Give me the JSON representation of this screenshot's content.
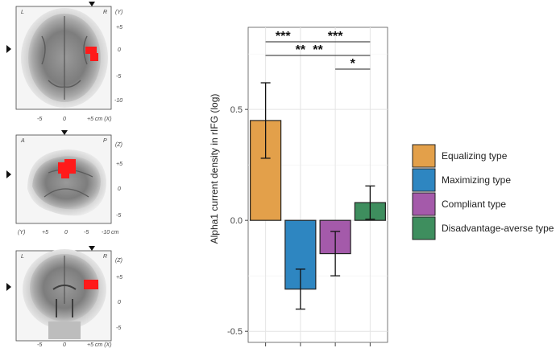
{
  "colors": {
    "equalizing": "#E3A04A",
    "maximizing": "#2E86C1",
    "compliant": "#A45AAA",
    "disadvantage": "#3E8E5E",
    "activation": "#FF1A1A"
  },
  "brain_panels": {
    "axial": {
      "orient_left": "L",
      "orient_right": "R",
      "y_label": "(Y)",
      "x_label": "+5 cm (X)",
      "x_ticks": [
        "-5",
        "0"
      ],
      "side_ticks": [
        "+5",
        "0",
        "-5",
        "-10"
      ]
    },
    "sagittal": {
      "orient_left": "A",
      "orient_right": "P",
      "y_label": "(Z)",
      "x_label": "(Y)",
      "x_ticks": [
        "+5",
        "0",
        "-5",
        "-10 cm"
      ],
      "side_ticks": [
        "+5",
        "0",
        "-5"
      ]
    },
    "coronal": {
      "orient_left": "L",
      "orient_right": "R",
      "y_label": "(Z)",
      "x_label": "+5 cm (X)",
      "x_ticks": [
        "-5",
        "0"
      ],
      "side_ticks": [
        "+5",
        "0",
        "-5"
      ]
    }
  },
  "chart_data": {
    "type": "bar",
    "categories": [
      "Equalizing type",
      "Maximizing type",
      "Compliant type",
      "Disadvantage-averse type"
    ],
    "values": [
      0.45,
      -0.31,
      -0.15,
      0.08
    ],
    "errors": [
      0.17,
      0.09,
      0.1,
      0.075
    ],
    "ylabel": "Alpha1 current density in rIFG (log)",
    "ylim": [
      -0.55,
      0.87
    ],
    "yticks": [
      -0.5,
      0.0,
      0.5
    ],
    "ytick_labels": [
      "-0.5",
      "0.0",
      "0.5"
    ],
    "grid": true,
    "legend_position": "right",
    "significance": [
      {
        "from": 0,
        "to": 1,
        "label": "***"
      },
      {
        "from": 1,
        "to": 3,
        "label": "***"
      },
      {
        "from": 0,
        "to": 2,
        "label": "**"
      },
      {
        "from": 0,
        "to": 3,
        "label": "**"
      },
      {
        "from": 2,
        "to": 3,
        "label": "*"
      }
    ]
  }
}
